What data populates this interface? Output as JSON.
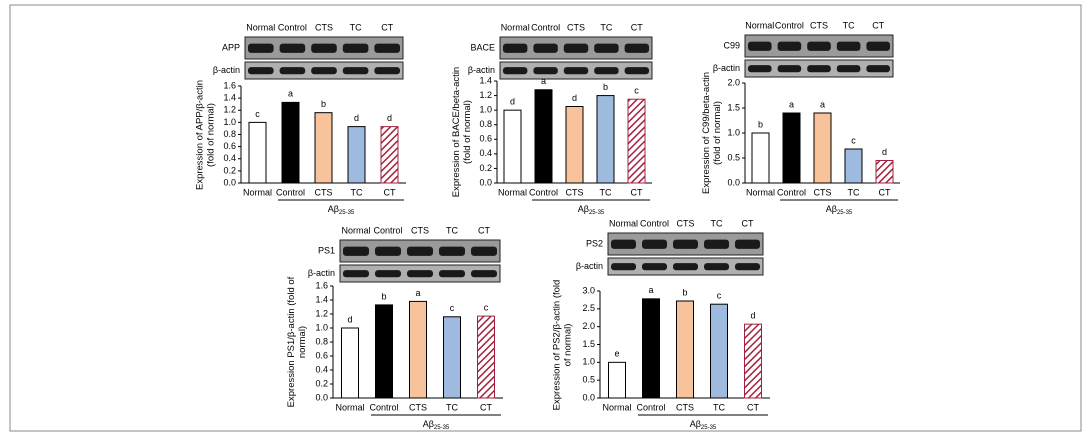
{
  "chart_data": [
    {
      "type": "bar",
      "blot": {
        "lanes": [
          "Normal",
          "Control",
          "CTS",
          "TC",
          "CT"
        ],
        "rows": [
          "APP",
          "β-actin"
        ]
      },
      "ylabel": "Expression of APP/β-actin (fold of normal)",
      "categories": [
        "Normal",
        "Control",
        "CTS",
        "TC",
        "CT"
      ],
      "values": [
        1.0,
        1.33,
        1.16,
        0.93,
        0.93
      ],
      "letters": [
        "c",
        "a",
        "b",
        "d",
        "d"
      ],
      "colors": [
        "#ffffff",
        "#000000",
        "#f8c39a",
        "#9fbadf",
        "#a3213f"
      ],
      "hatched": [
        false,
        false,
        false,
        false,
        true
      ],
      "ylim": [
        0,
        1.6
      ],
      "yticks": [
        {
          "value": 0,
          "label": "0.0"
        },
        {
          "value": 0.2,
          "label": "0.2"
        },
        {
          "value": 0.4,
          "label": "0.4"
        },
        {
          "value": 0.6,
          "label": "0.6"
        },
        {
          "value": 0.8,
          "label": "0.8"
        },
        {
          "value": 1,
          "label": "1.0"
        },
        {
          "value": 1.2,
          "label": "1.2"
        },
        {
          "value": 1.4,
          "label": "1.4"
        },
        {
          "value": 1.6,
          "label": "1.6"
        }
      ],
      "group_label": {
        "main": "Aβ",
        "sub": "25-35"
      }
    },
    {
      "type": "bar",
      "blot": {
        "lanes": [
          "Normal",
          "Control",
          "CTS",
          "TC",
          "CT"
        ],
        "rows": [
          "BACE",
          "β-actin"
        ]
      },
      "ylabel": "Expression of BACE/beta-actin (fold of normal)",
      "categories": [
        "Normal",
        "Control",
        "CTS",
        "TC",
        "CT"
      ],
      "values": [
        1.0,
        1.28,
        1.05,
        1.2,
        1.15
      ],
      "letters": [
        "d",
        "a",
        "d",
        "b",
        "c"
      ],
      "colors": [
        "#ffffff",
        "#000000",
        "#f8c39a",
        "#9fbadf",
        "#a3213f"
      ],
      "hatched": [
        false,
        false,
        false,
        false,
        true
      ],
      "ylim": [
        0,
        1.4
      ],
      "yticks": [
        {
          "value": 0,
          "label": "0.0"
        },
        {
          "value": 0.2,
          "label": "0.2"
        },
        {
          "value": 0.4,
          "label": "0.4"
        },
        {
          "value": 0.6,
          "label": "0.6"
        },
        {
          "value": 0.8,
          "label": "0.8"
        },
        {
          "value": 1,
          "label": "1.0"
        },
        {
          "value": 1.2,
          "label": "1.2"
        },
        {
          "value": 1.4,
          "label": "1.4"
        }
      ],
      "group_label": {
        "main": "Aβ",
        "sub": "25-35"
      }
    },
    {
      "type": "bar",
      "blot": {
        "lanes": [
          "Normal",
          "Control",
          "CTS",
          "TC",
          "CT"
        ],
        "rows": [
          "C99",
          "β-actin"
        ]
      },
      "ylabel": "Expression of C99/beta-actin (fold of normal)",
      "categories": [
        "Normal",
        "Control",
        "CTS",
        "TC",
        "CT"
      ],
      "values": [
        1.0,
        1.4,
        1.4,
        0.68,
        0.45
      ],
      "letters": [
        "b",
        "a",
        "a",
        "c",
        "d"
      ],
      "colors": [
        "#ffffff",
        "#000000",
        "#f8c39a",
        "#9fbadf",
        "#a3213f"
      ],
      "hatched": [
        false,
        false,
        false,
        false,
        true
      ],
      "ylim": [
        0,
        2
      ],
      "yticks": [
        {
          "value": 0,
          "label": "0.0"
        },
        {
          "value": 0.5,
          "label": "0.5"
        },
        {
          "value": 1,
          "label": "1.0"
        },
        {
          "value": 1.5,
          "label": "1.5"
        },
        {
          "value": 2,
          "label": "2.0"
        }
      ],
      "group_label": {
        "main": "Aβ",
        "sub": "25-35"
      }
    },
    {
      "type": "bar",
      "blot": {
        "lanes": [
          "Normal",
          "Control",
          "CTS",
          "TC",
          "CT"
        ],
        "rows": [
          "PS1",
          "β-actin"
        ]
      },
      "ylabel": "Expression PS1/β-actin (fold of normal)",
      "categories": [
        "Normal",
        "Control",
        "CTS",
        "TC",
        "CT"
      ],
      "values": [
        1.0,
        1.33,
        1.38,
        1.16,
        1.17
      ],
      "letters": [
        "d",
        "b",
        "a",
        "c",
        "c"
      ],
      "colors": [
        "#ffffff",
        "#000000",
        "#f8c39a",
        "#9fbadf",
        "#a3213f"
      ],
      "hatched": [
        false,
        false,
        false,
        false,
        true
      ],
      "ylim": [
        0,
        1.6
      ],
      "yticks": [
        {
          "value": 0,
          "label": "0.0"
        },
        {
          "value": 0.2,
          "label": "0.2"
        },
        {
          "value": 0.4,
          "label": "0.4"
        },
        {
          "value": 0.6,
          "label": "0.6"
        },
        {
          "value": 0.8,
          "label": "0.8"
        },
        {
          "value": 1,
          "label": "1.0"
        },
        {
          "value": 1.2,
          "label": "1.2"
        },
        {
          "value": 1.4,
          "label": "1.4"
        },
        {
          "value": 1.6,
          "label": "1.6"
        }
      ],
      "group_label": {
        "main": "Aβ",
        "sub": "25-35"
      }
    },
    {
      "type": "bar",
      "blot": {
        "lanes": [
          "Normal",
          "Control",
          "CTS",
          "TC",
          "CT"
        ],
        "rows": [
          "PS2",
          "β-actin"
        ]
      },
      "ylabel": "Expression of PS2/β-actin (fold of normal)",
      "categories": [
        "Normal",
        "Control",
        "CTS",
        "TC",
        "CT"
      ],
      "values": [
        1.0,
        2.78,
        2.72,
        2.63,
        2.07
      ],
      "letters": [
        "e",
        "a",
        "b",
        "c",
        "d"
      ],
      "colors": [
        "#ffffff",
        "#000000",
        "#f8c39a",
        "#9fbadf",
        "#a3213f"
      ],
      "hatched": [
        false,
        false,
        false,
        false,
        true
      ],
      "ylim": [
        0,
        3
      ],
      "yticks": [
        {
          "value": 0,
          "label": "0.0"
        },
        {
          "value": 0.5,
          "label": "0.5"
        },
        {
          "value": 1,
          "label": "1.0"
        },
        {
          "value": 1.5,
          "label": "1.5"
        },
        {
          "value": 2,
          "label": "2.0"
        },
        {
          "value": 2.5,
          "label": "2.5"
        },
        {
          "value": 3,
          "label": "3.0"
        }
      ],
      "group_label": {
        "main": "Aβ",
        "sub": "25-35"
      }
    }
  ]
}
